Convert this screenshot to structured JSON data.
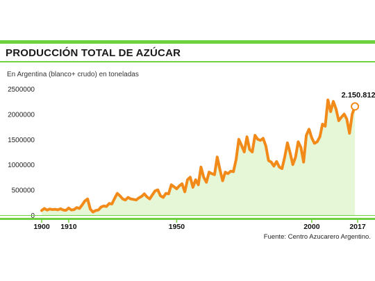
{
  "header": {
    "title": "PRODUCCIÓN TOTAL DE AZÚCAR",
    "subtitle": "En Argentina (blanco+ crudo) en toneladas"
  },
  "source": "Fuente: Centro Azucarero Argentino.",
  "colors": {
    "accent": "#6dd23e",
    "line": "#f28a1a",
    "area": "#e6f7d8"
  },
  "chart_data": {
    "type": "area",
    "title": "PRODUCCIÓN TOTAL DE AZÚCAR",
    "xlabel": "",
    "ylabel": "",
    "xlim": [
      1900,
      2017
    ],
    "ylim": [
      0,
      2500000
    ],
    "grid": false,
    "legend": "none",
    "x_ticks": [
      1900,
      1910,
      1950,
      2000,
      2017
    ],
    "y_ticks": [
      0,
      500000,
      1000000,
      1500000,
      2000000,
      2500000
    ],
    "y_tick_labels": [
      "0",
      "500000",
      "1000000",
      "1500000",
      "2000000",
      "2500000"
    ],
    "annotation": {
      "x": 2016,
      "value": 2150812,
      "label": "2.150.812"
    },
    "series": [
      {
        "x": [
          1900,
          1901,
          1902,
          1903,
          1904,
          1905,
          1906,
          1907,
          1908,
          1909,
          1910,
          1911,
          1912,
          1913,
          1914,
          1915,
          1916,
          1917,
          1918,
          1919,
          1920,
          1921,
          1922,
          1923,
          1924,
          1925,
          1926,
          1927,
          1928,
          1929,
          1930,
          1931,
          1932,
          1933,
          1934,
          1935,
          1936,
          1937,
          1938,
          1939,
          1940,
          1941,
          1942,
          1943,
          1944,
          1945,
          1946,
          1947,
          1948,
          1949,
          1950,
          1951,
          1952,
          1953,
          1954,
          1955,
          1956,
          1957,
          1958,
          1959,
          1960,
          1961,
          1962,
          1963,
          1964,
          1965,
          1966,
          1967,
          1968,
          1969,
          1970,
          1971,
          1972,
          1973,
          1974,
          1975,
          1976,
          1977,
          1978,
          1979,
          1980,
          1981,
          1982,
          1983,
          1984,
          1985,
          1986,
          1987,
          1988,
          1989,
          1990,
          1991,
          1992,
          1993,
          1994,
          1995,
          1996,
          1997,
          1998,
          1999,
          2000,
          2001,
          2002,
          2003,
          2004,
          2005,
          2006,
          2007,
          2008,
          2009,
          2010,
          2011,
          2012,
          2013,
          2014,
          2015,
          2016
        ],
        "values": [
          90000,
          130000,
          100000,
          120000,
          110000,
          115000,
          105000,
          125000,
          100000,
          95000,
          140000,
          100000,
          110000,
          150000,
          130000,
          200000,
          280000,
          320000,
          120000,
          60000,
          90000,
          100000,
          160000,
          180000,
          170000,
          230000,
          220000,
          330000,
          430000,
          380000,
          320000,
          300000,
          350000,
          320000,
          310000,
          300000,
          340000,
          370000,
          420000,
          360000,
          320000,
          400000,
          480000,
          500000,
          380000,
          350000,
          430000,
          420000,
          600000,
          560000,
          520000,
          580000,
          620000,
          460000,
          700000,
          750000,
          550000,
          700000,
          600000,
          950000,
          750000,
          650000,
          850000,
          820000,
          800000,
          1150000,
          900000,
          680000,
          850000,
          820000,
          870000,
          860000,
          1100000,
          1500000,
          1380000,
          1250000,
          1550000,
          1300000,
          1250000,
          1580000,
          1500000,
          1480000,
          1520000,
          1370000,
          1080000,
          1050000,
          970000,
          1060000,
          950000,
          920000,
          1150000,
          1430000,
          1230000,
          1000000,
          1150000,
          1450000,
          1340000,
          1050000,
          1580000,
          1700000,
          1530000,
          1420000,
          1450000,
          1550000,
          1800000,
          1760000,
          2280000,
          2050000,
          2250000,
          2100000,
          1870000,
          1940000,
          2000000,
          1900000,
          1620000,
          2000000,
          2150812
        ]
      }
    ]
  }
}
